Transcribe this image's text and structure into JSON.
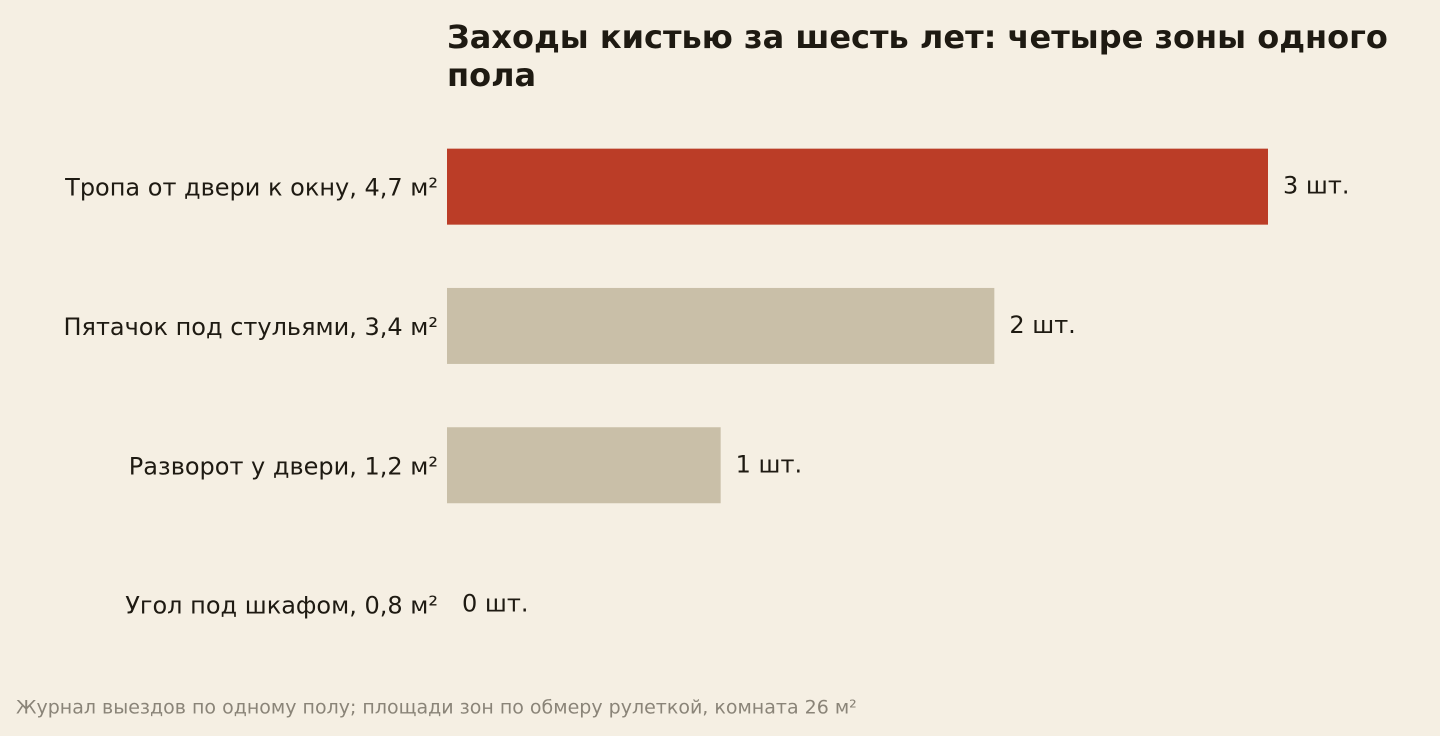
{
  "chart_data": {
    "type": "bar",
    "orientation": "horizontal",
    "title": "Заходы кистью за шесть лет: четыре зоны одного пола",
    "categories": [
      "Тропа от двери к окну, 4,7 м²",
      "Пятачок под стульями, 3,4 м²",
      "Разворот у двери, 1,2 м²",
      "Угол под шкафом, 0,8 м²"
    ],
    "values": [
      3,
      2,
      1,
      0
    ],
    "value_labels": [
      "3 шт.",
      "2 шт.",
      "1 шт.",
      "0 шт."
    ],
    "colors": [
      "#bb3d27",
      "#c9bfa8",
      "#c9bfa8",
      "#c9bfa8"
    ],
    "note": "Журнал выездов по одному полу; площади зон по обмеру рулеткой, комната 26 м²"
  }
}
